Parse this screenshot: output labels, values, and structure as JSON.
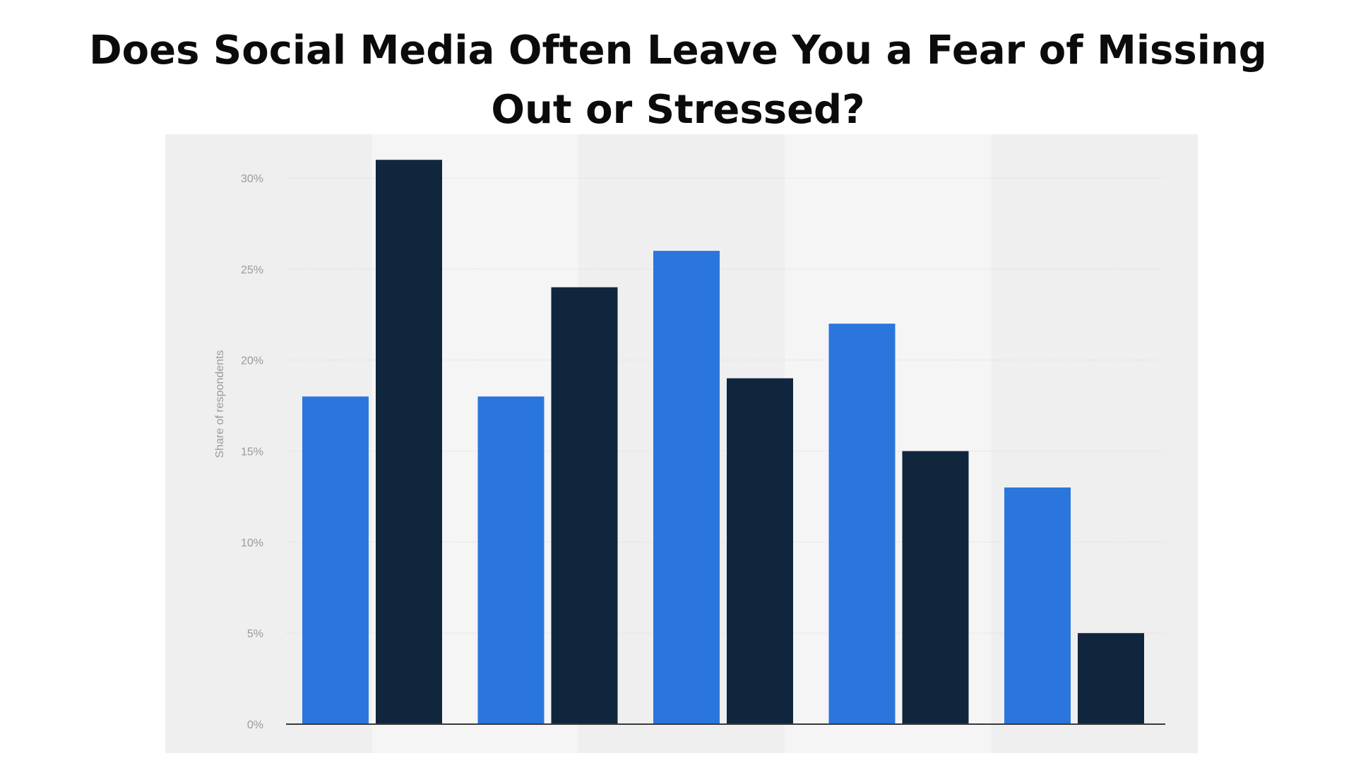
{
  "title": "Does Social Media Often Leave You a Fear of Missing Out or Stressed?",
  "colors": {
    "series_1": "#2a76dd",
    "series_2": "#10263d",
    "grid": "#dedede",
    "axis": "#3a3a3a",
    "band_light": "#f5f5f6",
    "band_dark": "#efeff0"
  },
  "chart_data": {
    "type": "bar",
    "title": "Does Social Media Often Leave You a Fear of Missing Out or Stressed?",
    "xlabel": "",
    "ylabel": "Share of respondents",
    "ylim": [
      0,
      30
    ],
    "yticks": [
      "0%",
      "5%",
      "10%",
      "15%",
      "20%",
      "25%",
      "30%"
    ],
    "categories": [
      "",
      "",
      "",
      "",
      ""
    ],
    "series": [
      {
        "values": [
          18,
          18,
          26,
          22,
          13
        ]
      },
      {
        "values": [
          31,
          24,
          19,
          15,
          5
        ]
      }
    ],
    "grid": true,
    "legend": "none"
  }
}
